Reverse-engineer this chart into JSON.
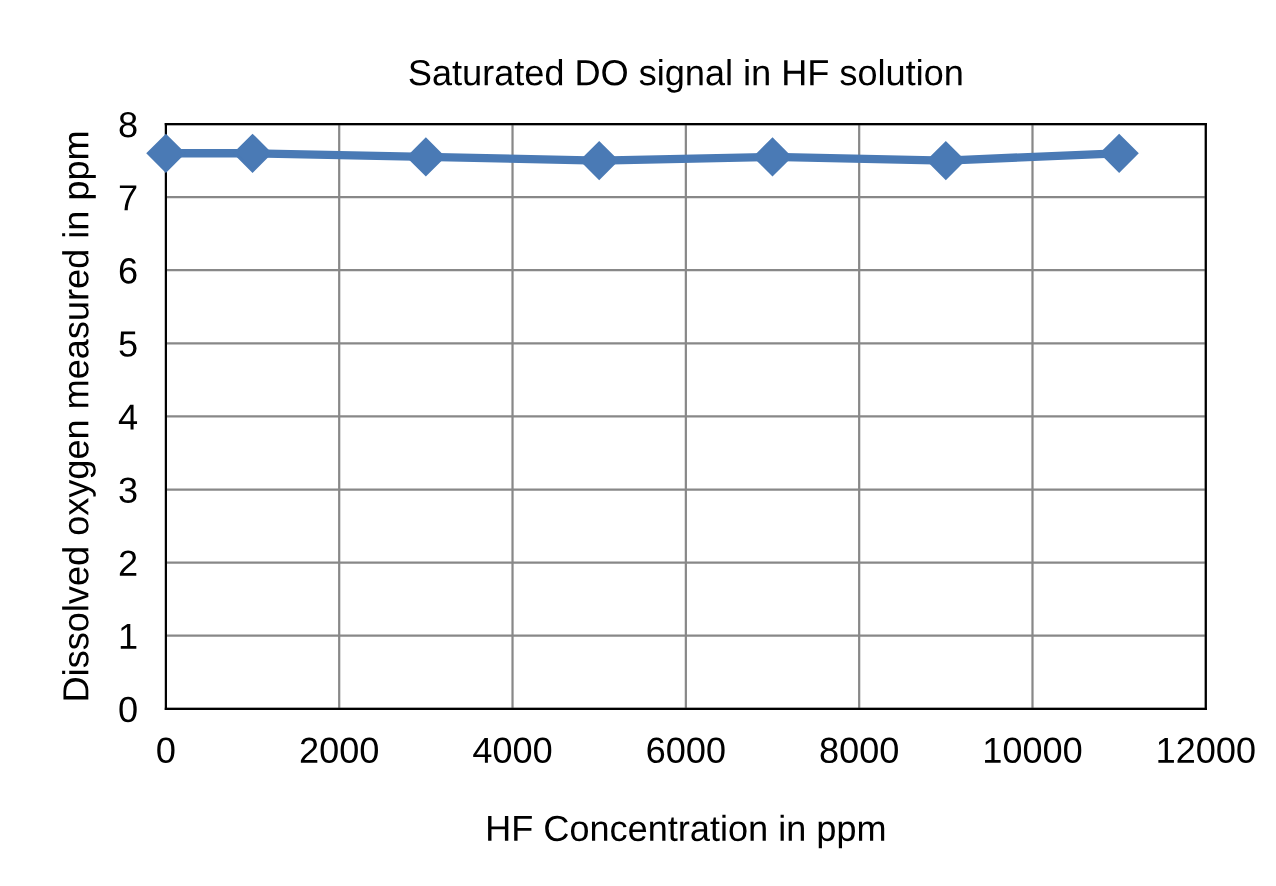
{
  "chart_data": {
    "type": "line",
    "title": "Saturated DO signal in HF solution",
    "xlabel": "HF Concentration in ppm",
    "ylabel": "Dissolved oxygen measured in ppm",
    "x": [
      0,
      1000,
      3000,
      5000,
      7000,
      9000,
      11000
    ],
    "series": [
      {
        "color": "#4a7ab5",
        "values": [
          7.6,
          7.6,
          7.55,
          7.5,
          7.55,
          7.5,
          7.6
        ]
      }
    ],
    "xlim": [
      0,
      12000
    ],
    "xticks": [
      0,
      2000,
      4000,
      6000,
      8000,
      10000,
      12000
    ],
    "ylim": [
      0,
      8
    ],
    "yticks": [
      0,
      1,
      2,
      3,
      4,
      5,
      6,
      7,
      8
    ],
    "grid": true,
    "marker": "diamond",
    "line_style": "solid"
  }
}
